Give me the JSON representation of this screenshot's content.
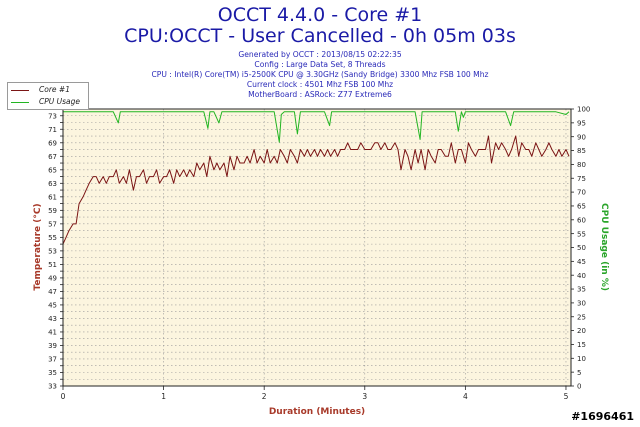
{
  "header": {
    "title": "OCCT 4.4.0 - Core #1",
    "subtitle": "CPU:OCCT - User Cancelled - 0h 05m 03s",
    "info_lines": [
      "Generated by OCCT : 2013/08/15 02:22:35",
      "Config : Large Data Set, 8 Threads",
      "CPU : Intel(R) Core(TM) i5-2500K CPU @ 3.30GHz (Sandy Bridge) 3300 Mhz FSB 100 Mhz",
      "Current clock : 4501 Mhz FSB 100 Mhz",
      "MotherBoard : ASRock: Z77 Extreme6"
    ]
  },
  "legend": {
    "items": [
      {
        "label": "Core #1",
        "color": "#7b1515"
      },
      {
        "label": "CPU Usage",
        "color": "#22b522"
      }
    ]
  },
  "watermark": "#1696461",
  "chart_data": {
    "type": "line",
    "xlabel": "Duration (Minutes)",
    "ylabel": "Temperature (°C)",
    "y2label": "CPU Usage (in %)",
    "xlim": [
      0,
      5.05
    ],
    "ylim": [
      33,
      74
    ],
    "y2lim": [
      0,
      100
    ],
    "xticks": [
      0,
      1,
      2,
      3,
      4,
      5
    ],
    "yticks": [
      33,
      34,
      35,
      36,
      37,
      38,
      39,
      40,
      41,
      42,
      43,
      44,
      45,
      46,
      47,
      48,
      49,
      50,
      51,
      52,
      53,
      54,
      55,
      56,
      57,
      58,
      59,
      60,
      61,
      62,
      63,
      64,
      65,
      66,
      67,
      68,
      69,
      70,
      71,
      72,
      73,
      74
    ],
    "ytick_labels_every": 2,
    "y2ticks": [
      0,
      5,
      10,
      15,
      20,
      25,
      30,
      35,
      40,
      45,
      50,
      55,
      60,
      65,
      70,
      75,
      80,
      85,
      90,
      95,
      100
    ],
    "grid": true,
    "legend_position": "top-left",
    "series": [
      {
        "name": "Core #1",
        "axis": "left",
        "color": "#7b1515",
        "x": [
          0.0,
          0.03,
          0.06,
          0.1,
          0.13,
          0.16,
          0.2,
          0.23,
          0.26,
          0.3,
          0.33,
          0.36,
          0.4,
          0.43,
          0.46,
          0.5,
          0.53,
          0.56,
          0.6,
          0.63,
          0.66,
          0.7,
          0.73,
          0.76,
          0.8,
          0.83,
          0.86,
          0.9,
          0.93,
          0.96,
          1.0,
          1.03,
          1.06,
          1.1,
          1.13,
          1.16,
          1.2,
          1.23,
          1.26,
          1.3,
          1.33,
          1.36,
          1.4,
          1.43,
          1.46,
          1.5,
          1.53,
          1.56,
          1.6,
          1.63,
          1.66,
          1.7,
          1.73,
          1.76,
          1.8,
          1.83,
          1.86,
          1.9,
          1.93,
          1.96,
          2.0,
          2.03,
          2.06,
          2.1,
          2.13,
          2.16,
          2.2,
          2.23,
          2.26,
          2.3,
          2.33,
          2.36,
          2.4,
          2.43,
          2.46,
          2.5,
          2.53,
          2.56,
          2.6,
          2.63,
          2.66,
          2.7,
          2.73,
          2.76,
          2.8,
          2.83,
          2.86,
          2.9,
          2.93,
          2.96,
          3.0,
          3.03,
          3.06,
          3.1,
          3.13,
          3.16,
          3.2,
          3.23,
          3.26,
          3.3,
          3.33,
          3.36,
          3.4,
          3.43,
          3.46,
          3.5,
          3.53,
          3.56,
          3.6,
          3.63,
          3.66,
          3.7,
          3.73,
          3.76,
          3.8,
          3.83,
          3.86,
          3.9,
          3.93,
          3.96,
          4.0,
          4.03,
          4.06,
          4.1,
          4.13,
          4.16,
          4.2,
          4.23,
          4.26,
          4.3,
          4.33,
          4.36,
          4.4,
          4.43,
          4.46,
          4.5,
          4.53,
          4.56,
          4.6,
          4.63,
          4.66,
          4.7,
          4.73,
          4.76,
          4.8,
          4.83,
          4.86,
          4.9,
          4.93,
          4.96,
          5.0,
          5.03
        ],
        "values": [
          54,
          55,
          56,
          57,
          57,
          60,
          61,
          62,
          63,
          64,
          64,
          63,
          64,
          63,
          64,
          64,
          65,
          63,
          64,
          63,
          65,
          62,
          64,
          64,
          65,
          63,
          64,
          64,
          65,
          63,
          64,
          64,
          65,
          63,
          65,
          64,
          65,
          64,
          65,
          64,
          66,
          65,
          66,
          64,
          67,
          65,
          66,
          65,
          66,
          64,
          67,
          65,
          67,
          66,
          66,
          67,
          66,
          68,
          66,
          67,
          66,
          68,
          66,
          67,
          66,
          68,
          67,
          66,
          68,
          67,
          66,
          68,
          67,
          68,
          67,
          68,
          67,
          68,
          67,
          68,
          67,
          68,
          67,
          68,
          68,
          69,
          68,
          68,
          68,
          69,
          68,
          68,
          68,
          69,
          69,
          68,
          69,
          68,
          68,
          69,
          68,
          65,
          68,
          67,
          65,
          68,
          66,
          68,
          65,
          68,
          67,
          66,
          68,
          68,
          67,
          67,
          69,
          66,
          68,
          68,
          66,
          69,
          68,
          67,
          68,
          68,
          68,
          70,
          66,
          69,
          68,
          69,
          68,
          67,
          68,
          70,
          67,
          69,
          68,
          68,
          67,
          69,
          68,
          67,
          68,
          69,
          68,
          67,
          68,
          67,
          68,
          67
        ]
      },
      {
        "name": "CPU Usage",
        "axis": "right",
        "color": "#22b522",
        "x": [
          0.0,
          0.1,
          0.2,
          0.3,
          0.4,
          0.5,
          0.55,
          0.57,
          0.6,
          0.7,
          0.8,
          0.9,
          1.0,
          1.1,
          1.2,
          1.3,
          1.4,
          1.44,
          1.46,
          1.5,
          1.55,
          1.58,
          1.62,
          1.7,
          1.8,
          1.9,
          2.0,
          2.1,
          2.15,
          2.17,
          2.2,
          2.3,
          2.33,
          2.36,
          2.4,
          2.5,
          2.6,
          2.65,
          2.67,
          2.7,
          2.8,
          2.9,
          3.0,
          3.1,
          3.2,
          3.3,
          3.4,
          3.5,
          3.55,
          3.57,
          3.6,
          3.7,
          3.8,
          3.9,
          3.93,
          3.96,
          3.98,
          4.0,
          4.1,
          4.2,
          4.3,
          4.4,
          4.45,
          4.48,
          4.5,
          4.6,
          4.7,
          4.8,
          4.9,
          5.0,
          5.03
        ],
        "values": [
          99,
          99,
          99,
          99,
          99,
          99,
          95,
          99,
          99,
          99,
          99,
          99,
          99,
          99,
          99,
          99,
          99,
          93,
          99,
          99,
          95,
          99,
          99,
          99,
          99,
          99,
          99,
          99,
          88,
          98,
          99,
          99,
          91,
          99,
          99,
          99,
          99,
          94,
          99,
          99,
          99,
          99,
          99,
          99,
          99,
          99,
          99,
          99,
          89,
          99,
          99,
          99,
          99,
          99,
          92,
          99,
          97,
          99,
          99,
          99,
          99,
          99,
          94,
          99,
          99,
          99,
          99,
          99,
          99,
          98,
          99
        ]
      }
    ]
  }
}
